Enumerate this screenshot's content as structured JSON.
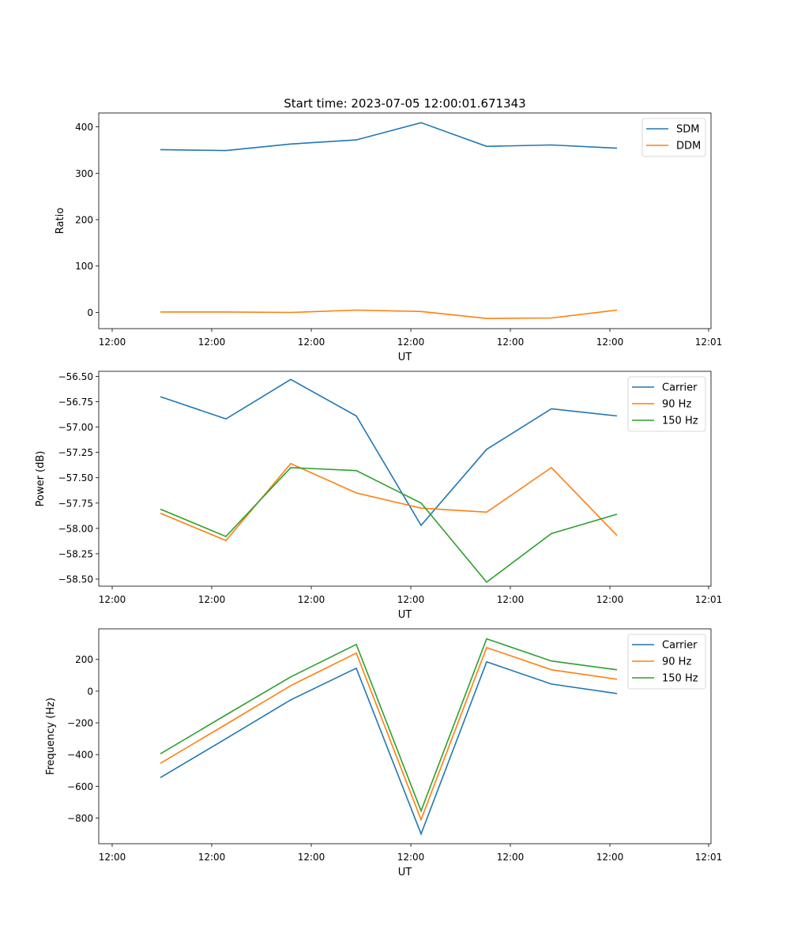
{
  "title": "Start time: 2023-07-05 12:00:01.671343",
  "chart_data": [
    {
      "type": "line",
      "title": "Start time: 2023-07-05 12:00:01.671343",
      "xlabel": "UT",
      "ylabel": "Ratio",
      "x_ticks": [
        "12:00",
        "12:00",
        "12:00",
        "12:00",
        "12:00",
        "12:00",
        "12:00",
        "12:01"
      ],
      "y_ticks": [
        "0",
        "100",
        "200",
        "300",
        "400"
      ],
      "y_tick_values": [
        0,
        100,
        200,
        300,
        400
      ],
      "ylim": [
        -35,
        430
      ],
      "legend": "top-right",
      "series": [
        {
          "name": "SDM",
          "color": "#1f77b4",
          "values": [
            351,
            349,
            363,
            372,
            409,
            358,
            361,
            354
          ]
        },
        {
          "name": "DDM",
          "color": "#ff7f0e",
          "values": [
            1,
            1,
            0,
            5,
            2,
            -13,
            -12,
            5
          ]
        }
      ]
    },
    {
      "type": "line",
      "title": "",
      "xlabel": "UT",
      "ylabel": "Power (dB)",
      "x_ticks": [
        "12:00",
        "12:00",
        "12:00",
        "12:00",
        "12:00",
        "12:00",
        "12:00",
        "12:01"
      ],
      "y_ticks": [
        "−56.50",
        "−56.75",
        "−57.00",
        "−57.25",
        "−57.50",
        "−57.75",
        "−58.00",
        "−58.25",
        "−58.50"
      ],
      "y_tick_values": [
        -56.5,
        -56.75,
        -57.0,
        -57.25,
        -57.5,
        -57.75,
        -58.0,
        -58.25,
        -58.5
      ],
      "ylim": [
        -58.57,
        -56.45
      ],
      "legend": "top-right",
      "series": [
        {
          "name": "Carrier",
          "color": "#1f77b4",
          "values": [
            -56.7,
            -56.92,
            -56.53,
            -56.89,
            -57.97,
            -57.22,
            -56.82,
            -56.89
          ]
        },
        {
          "name": "90 Hz",
          "color": "#ff7f0e",
          "values": [
            -57.85,
            -58.12,
            -57.36,
            -57.65,
            -57.8,
            -57.84,
            -57.4,
            -58.07
          ]
        },
        {
          "name": "150 Hz",
          "color": "#2ca02c",
          "values": [
            -57.81,
            -58.08,
            -57.4,
            -57.43,
            -57.75,
            -58.53,
            -58.05,
            -57.86
          ]
        }
      ]
    },
    {
      "type": "line",
      "title": "",
      "xlabel": "UT",
      "ylabel": "Frequency (Hz)",
      "x_ticks": [
        "12:00",
        "12:00",
        "12:00",
        "12:00",
        "12:00",
        "12:00",
        "12:00",
        "12:01"
      ],
      "y_ticks": [
        "200",
        "0",
        "−200",
        "−400",
        "−600",
        "−800"
      ],
      "y_tick_values": [
        200,
        0,
        -200,
        -400,
        -600,
        -800
      ],
      "ylim": [
        -962,
        393
      ],
      "legend": "top-right",
      "series": [
        {
          "name": "Carrier",
          "color": "#1f77b4",
          "values": [
            -545,
            -300,
            -55,
            145,
            -900,
            185,
            45,
            -15
          ]
        },
        {
          "name": "90 Hz",
          "color": "#ff7f0e",
          "values": [
            -455,
            -210,
            35,
            240,
            -810,
            275,
            135,
            75
          ]
        },
        {
          "name": "150 Hz",
          "color": "#2ca02c",
          "values": [
            -395,
            -150,
            90,
            295,
            -755,
            330,
            190,
            135
          ]
        }
      ]
    }
  ]
}
